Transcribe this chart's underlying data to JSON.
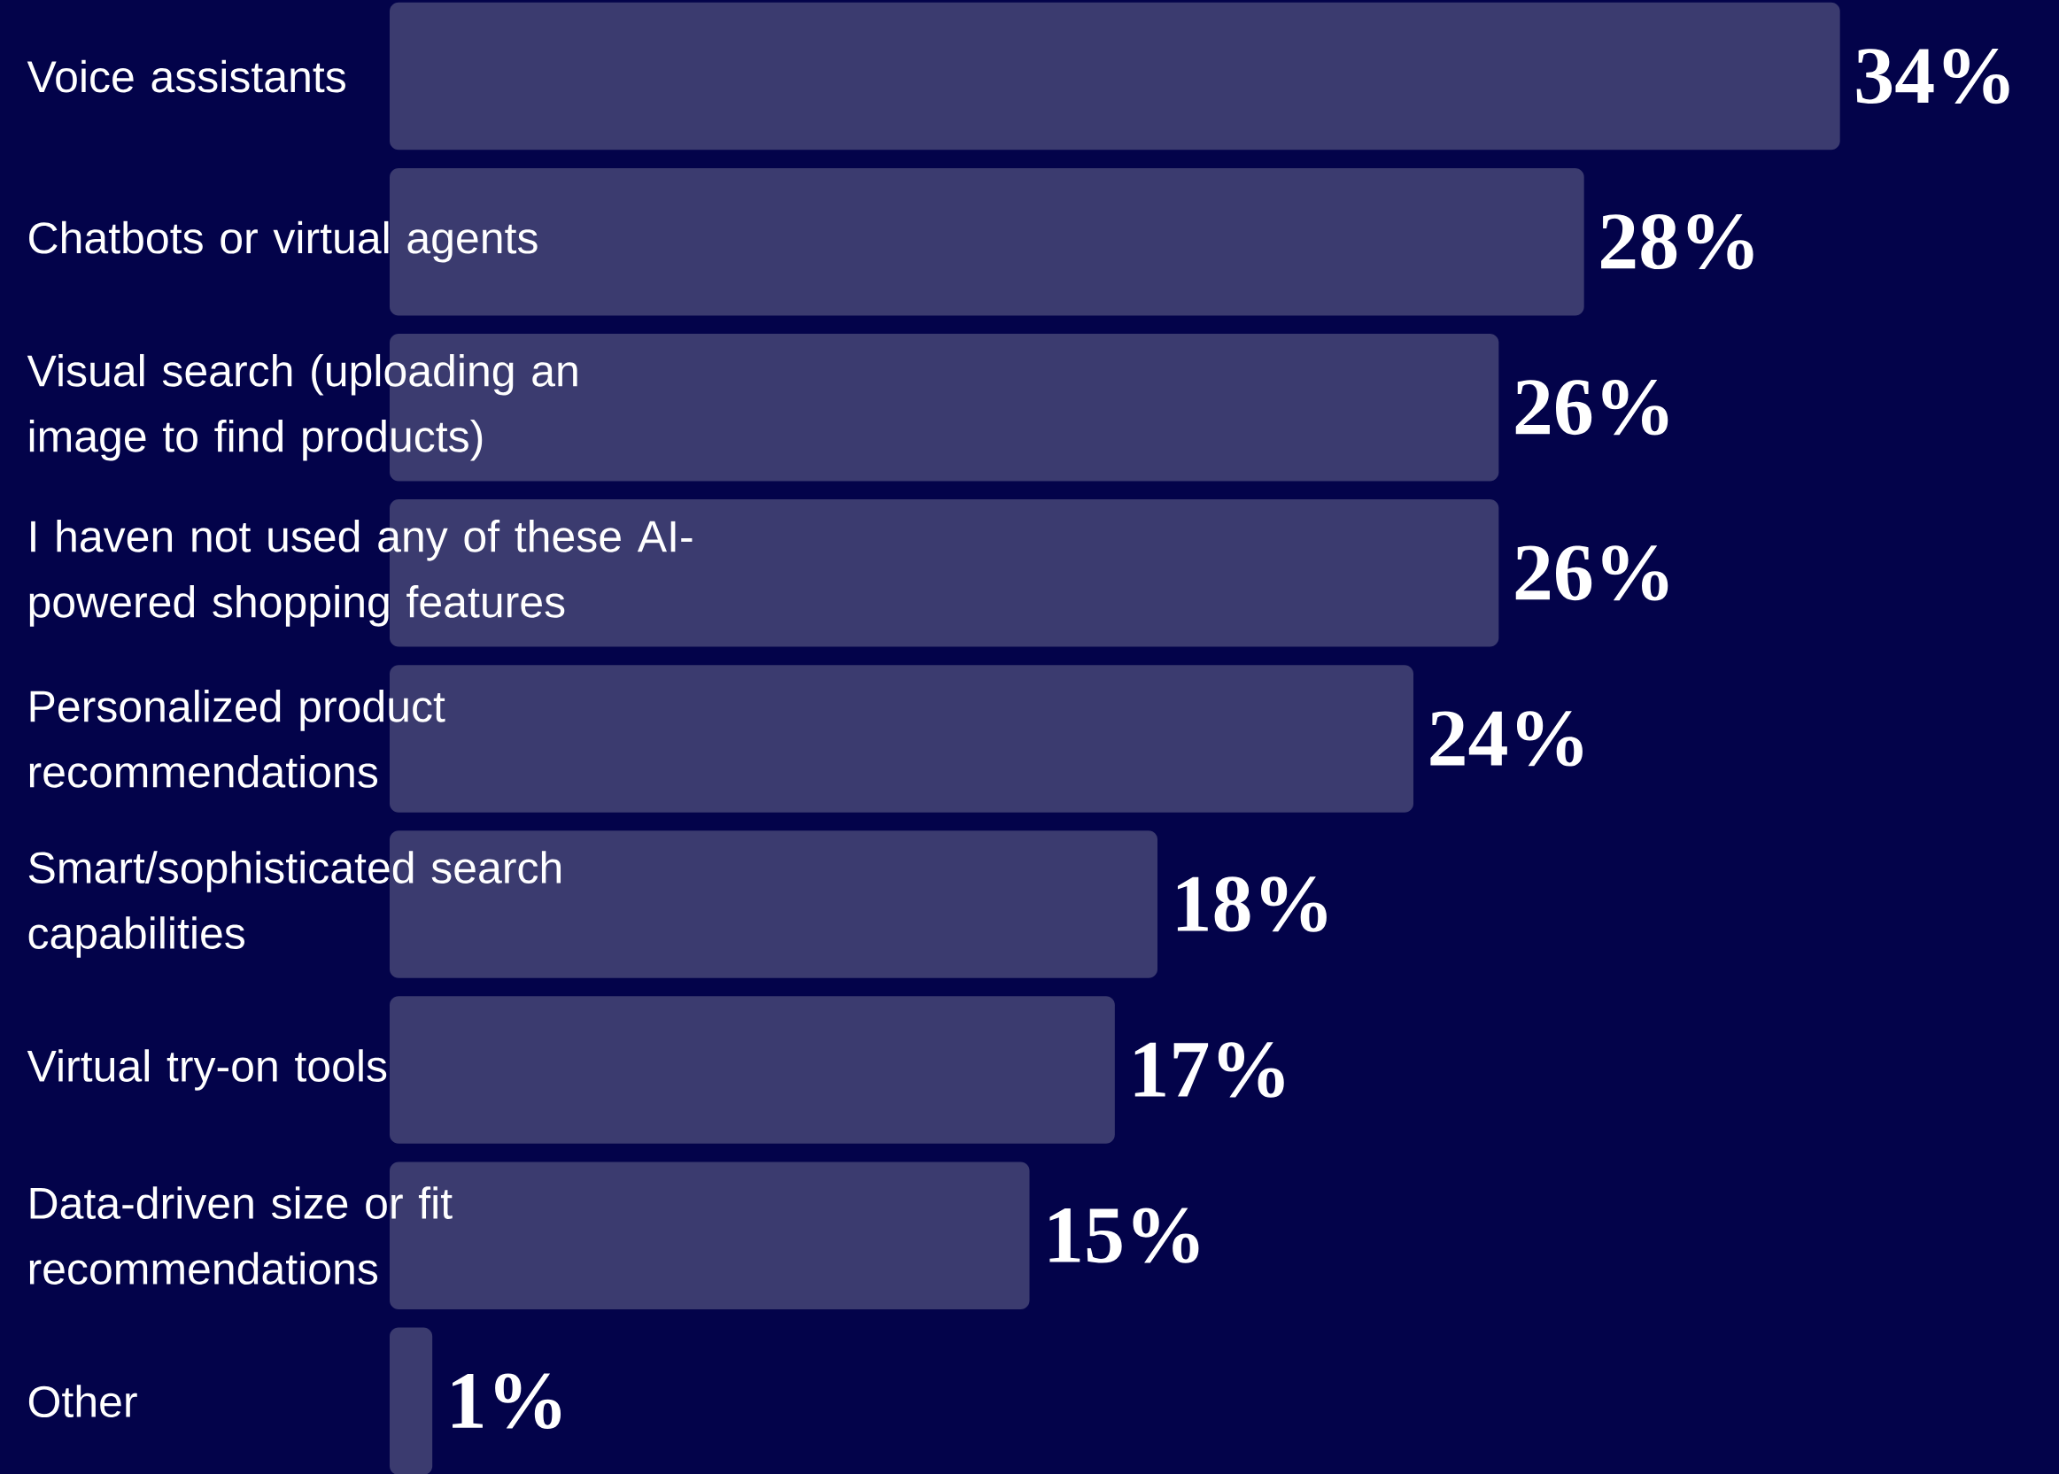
{
  "chart_data": {
    "type": "bar",
    "orientation": "horizontal",
    "categories": [
      "Voice assistants",
      "Chatbots or virtual agents",
      "Visual search (uploading an image to find products)",
      "I haven not used any of these AI-powered shopping features",
      "Personalized product recommendations",
      "Smart/sophisticated search capabilities",
      "Virtual try-on tools",
      "Data-driven size or fit recommendations",
      "Other"
    ],
    "values": [
      34,
      28,
      26,
      26,
      24,
      18,
      17,
      15,
      1
    ],
    "value_labels": [
      "34%",
      "28%",
      "26%",
      "26%",
      "24%",
      "18%",
      "17%",
      "15%",
      "1%"
    ],
    "color": "#3b3b6f"
  }
}
